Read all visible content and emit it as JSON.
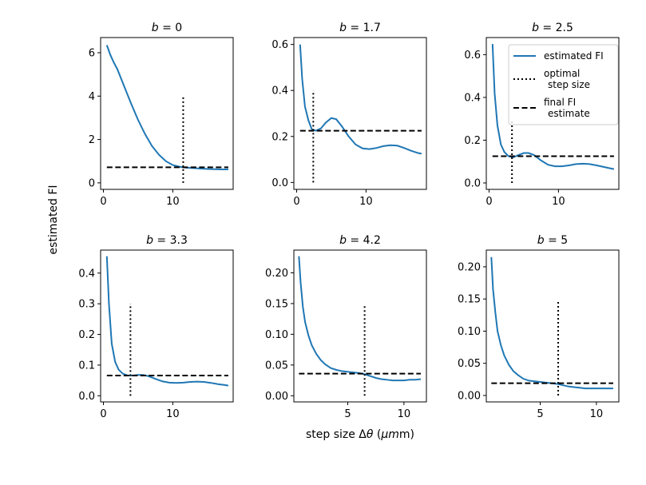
{
  "figure": {
    "ylabel": "estimated FI",
    "xlabel": "step size Δθ (μm)"
  },
  "legend": {
    "placement": "top-right of third panel",
    "entries": [
      {
        "label_lines": [
          "estimated FI"
        ],
        "style": "solid",
        "color": "#1f77b4"
      },
      {
        "label_lines": [
          "optimal",
          "step size"
        ],
        "style": "dotted",
        "color": "#000000"
      },
      {
        "label_lines": [
          "final FI",
          "estimate"
        ],
        "style": "dashed",
        "color": "#000000"
      }
    ]
  },
  "colors": {
    "curve": "#1f77b4",
    "lines": "#000000"
  },
  "chart_data": [
    {
      "type": "line",
      "title": "b = 0",
      "b_value": "0",
      "xlim": [
        -0.4,
        18.7
      ],
      "ylim": [
        -0.3,
        6.7
      ],
      "xticks": [
        0,
        10
      ],
      "yticks": [
        0,
        2,
        4,
        6
      ],
      "series": [
        {
          "name": "estimated FI",
          "x": [
            0.5,
            1.0,
            1.5,
            2.0,
            3.0,
            4.0,
            5.0,
            6.0,
            7.0,
            8.0,
            9.0,
            10.0,
            11.0,
            12.0,
            13.0,
            14.0,
            15.0,
            16.0,
            17.0,
            18.0
          ],
          "y": [
            6.35,
            5.9,
            5.55,
            5.25,
            4.45,
            3.65,
            2.9,
            2.25,
            1.7,
            1.3,
            1.0,
            0.82,
            0.74,
            0.7,
            0.68,
            0.66,
            0.64,
            0.63,
            0.62,
            0.62
          ]
        }
      ],
      "optimal_step": {
        "x": 11.5,
        "y_top": 4.0
      },
      "final_estimate": 0.72
    },
    {
      "type": "line",
      "title": "b = 1.7",
      "b_value": "1.7",
      "xlim": [
        -0.4,
        18.7
      ],
      "ylim": [
        -0.03,
        0.63
      ],
      "xticks": [
        0,
        10
      ],
      "yticks": [
        0.0,
        0.2,
        0.4,
        0.6
      ],
      "series": [
        {
          "name": "estimated FI",
          "x": [
            0.5,
            0.8,
            1.2,
            1.7,
            2.2,
            2.8,
            3.5,
            4.2,
            5.0,
            5.7,
            6.5,
            7.5,
            8.5,
            9.5,
            10.5,
            11.5,
            12.5,
            13.5,
            14.5,
            15.5,
            16.5,
            17.5,
            18.0
          ],
          "y": [
            0.6,
            0.45,
            0.33,
            0.27,
            0.23,
            0.225,
            0.235,
            0.26,
            0.28,
            0.275,
            0.245,
            0.2,
            0.165,
            0.148,
            0.145,
            0.15,
            0.158,
            0.162,
            0.16,
            0.15,
            0.138,
            0.128,
            0.125
          ]
        }
      ],
      "optimal_step": {
        "x": 2.4,
        "y_top": 0.4
      },
      "final_estimate": 0.225
    },
    {
      "type": "line",
      "title": "b = 2.5",
      "b_value": "2.5",
      "xlim": [
        -0.4,
        18.7
      ],
      "ylim": [
        -0.03,
        0.68
      ],
      "xticks": [
        0,
        10
      ],
      "yticks": [
        0.0,
        0.2,
        0.4,
        0.6
      ],
      "series": [
        {
          "name": "estimated FI",
          "x": [
            0.5,
            0.8,
            1.2,
            1.7,
            2.2,
            2.8,
            3.5,
            4.2,
            5.0,
            5.7,
            6.5,
            7.5,
            8.5,
            9.5,
            10.5,
            11.5,
            12.5,
            13.5,
            14.5,
            15.5,
            16.5,
            17.5,
            18.0
          ],
          "y": [
            0.65,
            0.42,
            0.27,
            0.18,
            0.145,
            0.125,
            0.12,
            0.13,
            0.14,
            0.14,
            0.13,
            0.105,
            0.085,
            0.078,
            0.078,
            0.082,
            0.088,
            0.09,
            0.088,
            0.082,
            0.075,
            0.068,
            0.065
          ]
        }
      ],
      "optimal_step": {
        "x": 3.3,
        "y_top": 0.3
      },
      "final_estimate": 0.125
    },
    {
      "type": "line",
      "title": "b = 3.3",
      "b_value": "3.3",
      "xlim": [
        -0.4,
        18.7
      ],
      "ylim": [
        -0.02,
        0.475
      ],
      "xticks": [
        0,
        10
      ],
      "yticks": [
        0.0,
        0.1,
        0.2,
        0.3,
        0.4
      ],
      "series": [
        {
          "name": "estimated FI",
          "x": [
            0.5,
            0.8,
            1.2,
            1.7,
            2.2,
            2.8,
            3.5,
            4.2,
            5.0,
            5.7,
            6.5,
            7.5,
            8.5,
            9.5,
            10.5,
            11.5,
            12.5,
            13.5,
            14.5,
            15.5,
            16.5,
            17.5,
            18.0
          ],
          "y": [
            0.455,
            0.3,
            0.17,
            0.11,
            0.085,
            0.072,
            0.066,
            0.066,
            0.068,
            0.068,
            0.064,
            0.055,
            0.047,
            0.043,
            0.042,
            0.043,
            0.045,
            0.046,
            0.045,
            0.042,
            0.038,
            0.035,
            0.033
          ]
        }
      ],
      "optimal_step": {
        "x": 3.9,
        "y_top": 0.3
      },
      "final_estimate": 0.066
    },
    {
      "type": "line",
      "title": "b = 4.2",
      "b_value": "4.2",
      "xlim": [
        0.2,
        12.0
      ],
      "ylim": [
        -0.01,
        0.237
      ],
      "xticks": [
        5,
        10
      ],
      "yticks": [
        0.0,
        0.05,
        0.1,
        0.15,
        0.2
      ],
      "series": [
        {
          "name": "estimated FI",
          "x": [
            0.65,
            0.8,
            1.0,
            1.2,
            1.5,
            1.8,
            2.2,
            2.6,
            3.0,
            3.5,
            4.0,
            4.5,
            5.0,
            5.5,
            6.0,
            6.5,
            7.0,
            7.5,
            8.0,
            8.5,
            9.0,
            9.5,
            10.0,
            10.5,
            11.0,
            11.5
          ],
          "y": [
            0.227,
            0.185,
            0.145,
            0.12,
            0.098,
            0.082,
            0.068,
            0.058,
            0.051,
            0.045,
            0.042,
            0.04,
            0.039,
            0.038,
            0.037,
            0.035,
            0.032,
            0.029,
            0.027,
            0.026,
            0.025,
            0.025,
            0.025,
            0.026,
            0.026,
            0.027
          ]
        }
      ],
      "optimal_step": {
        "x": 6.5,
        "y_top": 0.148
      },
      "final_estimate": 0.036
    },
    {
      "type": "line",
      "title": "b = 5",
      "b_value": "5",
      "xlim": [
        0.2,
        12.0
      ],
      "ylim": [
        -0.01,
        0.226
      ],
      "xticks": [
        5,
        10
      ],
      "yticks": [
        0.0,
        0.05,
        0.1,
        0.15,
        0.2
      ],
      "series": [
        {
          "name": "estimated FI",
          "x": [
            0.65,
            0.8,
            1.0,
            1.2,
            1.5,
            1.8,
            2.2,
            2.6,
            3.0,
            3.5,
            4.0,
            4.5,
            5.0,
            5.5,
            6.0,
            6.5,
            7.0,
            7.5,
            8.0,
            8.5,
            9.0,
            9.5,
            10.0,
            10.5,
            11.0,
            11.5
          ],
          "y": [
            0.215,
            0.165,
            0.13,
            0.1,
            0.078,
            0.062,
            0.048,
            0.038,
            0.032,
            0.026,
            0.023,
            0.022,
            0.021,
            0.02,
            0.019,
            0.018,
            0.016,
            0.014,
            0.013,
            0.012,
            0.011,
            0.011,
            0.011,
            0.011,
            0.011,
            0.011
          ]
        }
      ],
      "optimal_step": {
        "x": 6.6,
        "y_top": 0.148
      },
      "final_estimate": 0.019
    }
  ]
}
